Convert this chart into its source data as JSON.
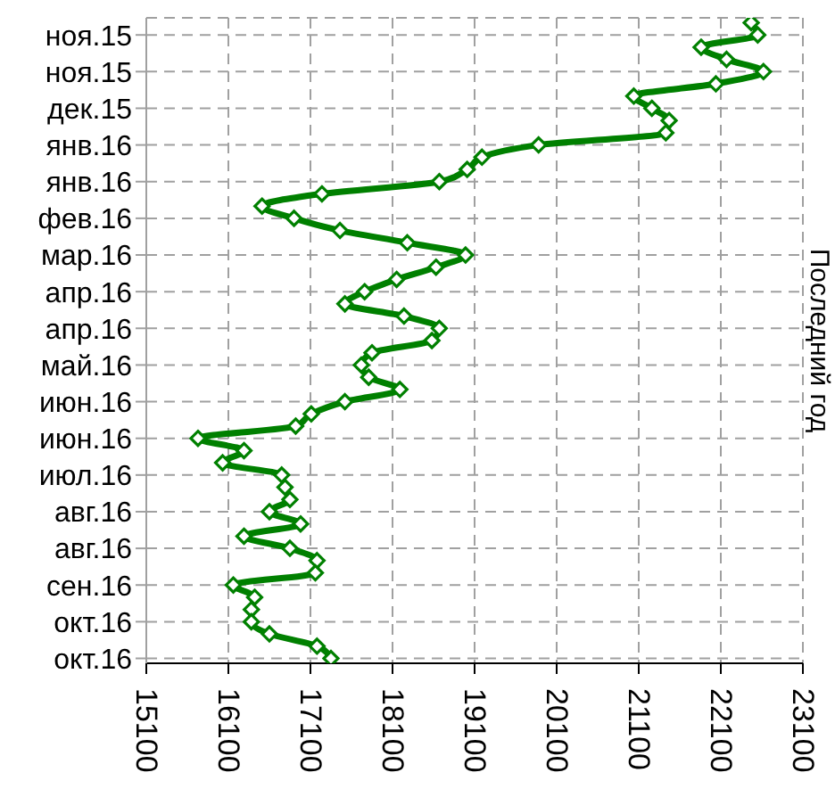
{
  "chart_data": {
    "type": "line",
    "orientation": "horizontal",
    "title": "Последний год",
    "categories": [
      null,
      "ноя.15",
      null,
      null,
      "ноя.15",
      null,
      null,
      "дек.15",
      null,
      null,
      "янв.16",
      null,
      null,
      "янв.16",
      null,
      null,
      "фев.16",
      null,
      null,
      "мар.16",
      null,
      null,
      "апр.16",
      null,
      null,
      "апр.16",
      null,
      null,
      "май.16",
      null,
      null,
      "июн.16",
      null,
      null,
      "июн.16",
      null,
      null,
      "июл.16",
      null,
      null,
      "авг.16",
      null,
      null,
      "авг.16",
      null,
      null,
      "сен.16",
      null,
      null,
      "окт.16",
      null,
      null,
      "окт.16"
    ],
    "series": [
      {
        "color": "#008000",
        "values": [
          22470,
          22550,
          21860,
          22170,
          22620,
          22040,
          21040,
          21260,
          21470,
          21430,
          19880,
          19190,
          19010,
          18670,
          17240,
          16510,
          16900,
          17460,
          18280,
          18990,
          18630,
          18150,
          17760,
          17520,
          18240,
          18670,
          18580,
          17850,
          17720,
          17810,
          18190,
          17520,
          17110,
          16920,
          15730,
          16290,
          16030,
          16750,
          16790,
          16850,
          16600,
          16980,
          16290,
          16850,
          17180,
          17160,
          16160,
          16420,
          16380,
          16380,
          16600,
          17180,
          17350
        ]
      }
    ],
    "xlim": [
      15100,
      23100
    ],
    "xticks": [
      15100,
      16100,
      17100,
      18100,
      19100,
      20100,
      21100,
      22100,
      23100
    ],
    "grid": true,
    "marker": "diamond",
    "line_style": "solid"
  }
}
